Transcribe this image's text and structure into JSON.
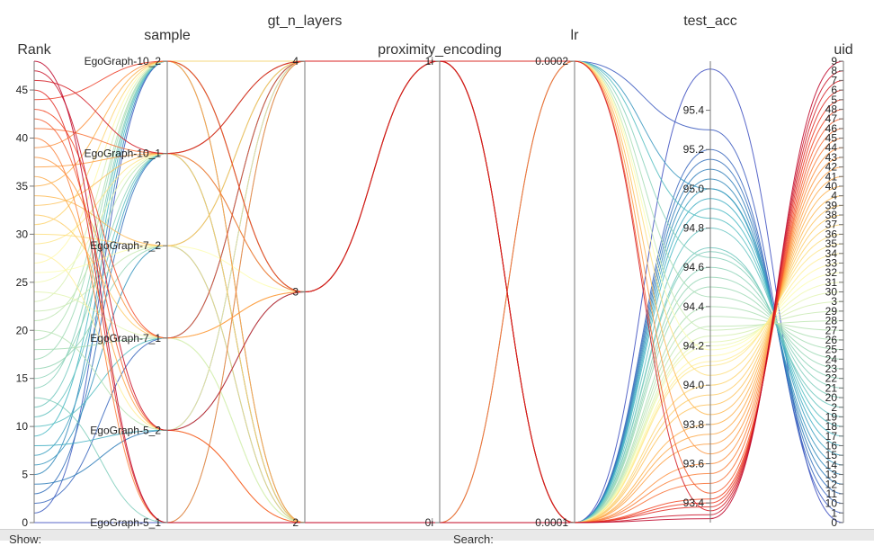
{
  "chart_data": {
    "type": "parallel_coordinates",
    "axes": [
      {
        "id": "rank",
        "title": "Rank",
        "kind": "numeric",
        "range": [
          0,
          48
        ],
        "ticks": [
          "0",
          "5",
          "10",
          "15",
          "20",
          "25",
          "30",
          "35",
          "40",
          "45"
        ]
      },
      {
        "id": "sample",
        "title": "sample",
        "kind": "categorical",
        "categories": [
          "EgoGraph-5_1",
          "EgoGraph-5_2",
          "EgoGraph-7_1",
          "EgoGraph-7_2",
          "EgoGraph-10_1",
          "EgoGraph-10_2"
        ]
      },
      {
        "id": "gt_n_layers",
        "title": "gt_n_layers",
        "kind": "categorical",
        "categories": [
          "2",
          "3",
          "4"
        ]
      },
      {
        "id": "proximity_encoding",
        "title": "proximity_encoding",
        "kind": "categorical",
        "categories": [
          "0i",
          "1i"
        ]
      },
      {
        "id": "lr",
        "title": "lr",
        "kind": "categorical",
        "categories": [
          "0.0001",
          "0.0002"
        ]
      },
      {
        "id": "test_acc",
        "title": "test_acc",
        "kind": "numeric",
        "range": [
          93.3,
          95.65
        ],
        "ticks": [
          "93.4",
          "93.6",
          "93.8",
          "94.0",
          "94.2",
          "94.4",
          "94.6",
          "94.8",
          "95.0",
          "95.2",
          "95.4"
        ]
      },
      {
        "id": "uid",
        "title": "uid",
        "kind": "categorical",
        "categories": [
          "0",
          "1",
          "10",
          "11",
          "12",
          "13",
          "14",
          "15",
          "16",
          "17",
          "18",
          "19",
          "2",
          "20",
          "21",
          "22",
          "23",
          "24",
          "25",
          "26",
          "27",
          "28",
          "29",
          "3",
          "30",
          "31",
          "32",
          "33",
          "34",
          "35",
          "36",
          "37",
          "38",
          "39",
          "4",
          "40",
          "41",
          "42",
          "43",
          "44",
          "45",
          "46",
          "47",
          "48",
          "5",
          "6",
          "7",
          "8",
          "9"
        ]
      }
    ],
    "colorscale": [
      "#3b4cc0",
      "#2c7fb8",
      "#41b6c4",
      "#7fcdbb",
      "#a1dab4",
      "#c7e9b4",
      "#ffffb2",
      "#fed976",
      "#feb24c",
      "#fd8d3c",
      "#f03b20",
      "#bd0026"
    ],
    "records": [
      {
        "rank": 0,
        "sample": "EgoGraph-5_1",
        "gt_n_layers": "2",
        "proximity_encoding": "0i",
        "lr": "0.0001",
        "test_acc": 95.61,
        "uid": "0"
      },
      {
        "rank": 1,
        "sample": "EgoGraph-10_2",
        "gt_n_layers": "3",
        "proximity_encoding": "1i",
        "lr": "0.0002",
        "test_acc": 95.3,
        "uid": "1"
      },
      {
        "rank": 2,
        "sample": "EgoGraph-7_1",
        "gt_n_layers": "4",
        "proximity_encoding": "1i",
        "lr": "0.0001",
        "test_acc": 95.2,
        "uid": "10"
      },
      {
        "rank": 3,
        "sample": "EgoGraph-10_1",
        "gt_n_layers": "2",
        "proximity_encoding": "0i",
        "lr": "0.0001",
        "test_acc": 95.15,
        "uid": "11"
      },
      {
        "rank": 4,
        "sample": "EgoGraph-5_2",
        "gt_n_layers": "4",
        "proximity_encoding": "1i",
        "lr": "0.0001",
        "test_acc": 95.1,
        "uid": "12"
      },
      {
        "rank": 5,
        "sample": "EgoGraph-10_2",
        "gt_n_layers": "3",
        "proximity_encoding": "1i",
        "lr": "0.0001",
        "test_acc": 95.05,
        "uid": "13"
      },
      {
        "rank": 6,
        "sample": "EgoGraph-7_2",
        "gt_n_layers": "2",
        "proximity_encoding": "0i",
        "lr": "0.0002",
        "test_acc": 95.0,
        "uid": "14"
      },
      {
        "rank": 7,
        "sample": "EgoGraph-10_1",
        "gt_n_layers": "4",
        "proximity_encoding": "1i",
        "lr": "0.0001",
        "test_acc": 95.0,
        "uid": "15"
      },
      {
        "rank": 8,
        "sample": "EgoGraph-5_2",
        "gt_n_layers": "3",
        "proximity_encoding": "1i",
        "lr": "0.0001",
        "test_acc": 94.95,
        "uid": "16"
      },
      {
        "rank": 9,
        "sample": "EgoGraph-10_2",
        "gt_n_layers": "2",
        "proximity_encoding": "0i",
        "lr": "0.0001",
        "test_acc": 94.9,
        "uid": "17"
      },
      {
        "rank": 10,
        "sample": "EgoGraph-7_1",
        "gt_n_layers": "4",
        "proximity_encoding": "1i",
        "lr": "0.0002",
        "test_acc": 94.85,
        "uid": "18"
      },
      {
        "rank": 11,
        "sample": "EgoGraph-10_1",
        "gt_n_layers": "3",
        "proximity_encoding": "1i",
        "lr": "0.0001",
        "test_acc": 94.8,
        "uid": "19"
      },
      {
        "rank": 12,
        "sample": "EgoGraph-10_2",
        "gt_n_layers": "2",
        "proximity_encoding": "0i",
        "lr": "0.0001",
        "test_acc": 94.7,
        "uid": "2"
      },
      {
        "rank": 13,
        "sample": "EgoGraph-5_1",
        "gt_n_layers": "4",
        "proximity_encoding": "1i",
        "lr": "0.0001",
        "test_acc": 94.68,
        "uid": "20"
      },
      {
        "rank": 14,
        "sample": "EgoGraph-10_2",
        "gt_n_layers": "3",
        "proximity_encoding": "1i",
        "lr": "0.0002",
        "test_acc": 94.65,
        "uid": "21"
      },
      {
        "rank": 15,
        "sample": "EgoGraph-10_1",
        "gt_n_layers": "2",
        "proximity_encoding": "0i",
        "lr": "0.0001",
        "test_acc": 94.6,
        "uid": "22"
      },
      {
        "rank": 16,
        "sample": "EgoGraph-7_2",
        "gt_n_layers": "4",
        "proximity_encoding": "1i",
        "lr": "0.0001",
        "test_acc": 94.55,
        "uid": "23"
      },
      {
        "rank": 17,
        "sample": "EgoGraph-10_2",
        "gt_n_layers": "3",
        "proximity_encoding": "1i",
        "lr": "0.0001",
        "test_acc": 94.5,
        "uid": "24"
      },
      {
        "rank": 18,
        "sample": "EgoGraph-7_1",
        "gt_n_layers": "2",
        "proximity_encoding": "0i",
        "lr": "0.0002",
        "test_acc": 94.45,
        "uid": "25"
      },
      {
        "rank": 19,
        "sample": "EgoGraph-10_2",
        "gt_n_layers": "4",
        "proximity_encoding": "1i",
        "lr": "0.0001",
        "test_acc": 94.4,
        "uid": "26"
      },
      {
        "rank": 20,
        "sample": "EgoGraph-5_2",
        "gt_n_layers": "3",
        "proximity_encoding": "1i",
        "lr": "0.0001",
        "test_acc": 94.35,
        "uid": "27"
      },
      {
        "rank": 21,
        "sample": "EgoGraph-10_1",
        "gt_n_layers": "2",
        "proximity_encoding": "0i",
        "lr": "0.0001",
        "test_acc": 94.3,
        "uid": "28"
      },
      {
        "rank": 22,
        "sample": "EgoGraph-7_2",
        "gt_n_layers": "4",
        "proximity_encoding": "1i",
        "lr": "0.0002",
        "test_acc": 94.28,
        "uid": "29"
      },
      {
        "rank": 23,
        "sample": "EgoGraph-10_2",
        "gt_n_layers": "3",
        "proximity_encoding": "1i",
        "lr": "0.0001",
        "test_acc": 94.25,
        "uid": "3"
      },
      {
        "rank": 24,
        "sample": "EgoGraph-7_1",
        "gt_n_layers": "2",
        "proximity_encoding": "0i",
        "lr": "0.0001",
        "test_acc": 94.22,
        "uid": "30"
      },
      {
        "rank": 25,
        "sample": "EgoGraph-10_1",
        "gt_n_layers": "4",
        "proximity_encoding": "1i",
        "lr": "0.0001",
        "test_acc": 94.2,
        "uid": "31"
      },
      {
        "rank": 26,
        "sample": "EgoGraph-7_2",
        "gt_n_layers": "3",
        "proximity_encoding": "1i",
        "lr": "0.0002",
        "test_acc": 94.18,
        "uid": "32"
      },
      {
        "rank": 27,
        "sample": "EgoGraph-10_2",
        "gt_n_layers": "2",
        "proximity_encoding": "0i",
        "lr": "0.0001",
        "test_acc": 94.15,
        "uid": "33"
      },
      {
        "rank": 28,
        "sample": "EgoGraph-5_2",
        "gt_n_layers": "4",
        "proximity_encoding": "1i",
        "lr": "0.0001",
        "test_acc": 94.12,
        "uid": "34"
      },
      {
        "rank": 29,
        "sample": "EgoGraph-10_1",
        "gt_n_layers": "3",
        "proximity_encoding": "1i",
        "lr": "0.0001",
        "test_acc": 94.1,
        "uid": "35"
      },
      {
        "rank": 30,
        "sample": "EgoGraph-7_2",
        "gt_n_layers": "2",
        "proximity_encoding": "0i",
        "lr": "0.0002",
        "test_acc": 94.05,
        "uid": "36"
      },
      {
        "rank": 31,
        "sample": "EgoGraph-10_2",
        "gt_n_layers": "4",
        "proximity_encoding": "1i",
        "lr": "0.0001",
        "test_acc": 94.0,
        "uid": "37"
      },
      {
        "rank": 32,
        "sample": "EgoGraph-7_1",
        "gt_n_layers": "3",
        "proximity_encoding": "1i",
        "lr": "0.0001",
        "test_acc": 93.95,
        "uid": "38"
      },
      {
        "rank": 33,
        "sample": "EgoGraph-10_1",
        "gt_n_layers": "2",
        "proximity_encoding": "0i",
        "lr": "0.0001",
        "test_acc": 93.9,
        "uid": "39"
      },
      {
        "rank": 34,
        "sample": "EgoGraph-7_2",
        "gt_n_layers": "4",
        "proximity_encoding": "1i",
        "lr": "0.0002",
        "test_acc": 93.85,
        "uid": "4"
      },
      {
        "rank": 35,
        "sample": "EgoGraph-10_2",
        "gt_n_layers": "3",
        "proximity_encoding": "1i",
        "lr": "0.0001",
        "test_acc": 93.8,
        "uid": "40"
      },
      {
        "rank": 36,
        "sample": "EgoGraph-5_2",
        "gt_n_layers": "2",
        "proximity_encoding": "0i",
        "lr": "0.0001",
        "test_acc": 93.75,
        "uid": "41"
      },
      {
        "rank": 37,
        "sample": "EgoGraph-10_1",
        "gt_n_layers": "4",
        "proximity_encoding": "1i",
        "lr": "0.0001",
        "test_acc": 93.7,
        "uid": "42"
      },
      {
        "rank": 38,
        "sample": "EgoGraph-7_1",
        "gt_n_layers": "3",
        "proximity_encoding": "1i",
        "lr": "0.0002",
        "test_acc": 93.65,
        "uid": "43"
      },
      {
        "rank": 39,
        "sample": "EgoGraph-10_2",
        "gt_n_layers": "2",
        "proximity_encoding": "0i",
        "lr": "0.0001",
        "test_acc": 93.6,
        "uid": "44"
      },
      {
        "rank": 40,
        "sample": "EgoGraph-5_1",
        "gt_n_layers": "4",
        "proximity_encoding": "1i",
        "lr": "0.0001",
        "test_acc": 93.55,
        "uid": "45"
      },
      {
        "rank": 41,
        "sample": "EgoGraph-10_1",
        "gt_n_layers": "3",
        "proximity_encoding": "1i",
        "lr": "0.0001",
        "test_acc": 93.5,
        "uid": "46"
      },
      {
        "rank": 42,
        "sample": "EgoGraph-5_2",
        "gt_n_layers": "2",
        "proximity_encoding": "0i",
        "lr": "0.0002",
        "test_acc": 93.45,
        "uid": "47"
      },
      {
        "rank": 43,
        "sample": "EgoGraph-7_1",
        "gt_n_layers": "4",
        "proximity_encoding": "1i",
        "lr": "0.0001",
        "test_acc": 93.42,
        "uid": "48"
      },
      {
        "rank": 44,
        "sample": "EgoGraph-10_2",
        "gt_n_layers": "3",
        "proximity_encoding": "1i",
        "lr": "0.0001",
        "test_acc": 93.4,
        "uid": "5"
      },
      {
        "rank": 45,
        "sample": "EgoGraph-5_1",
        "gt_n_layers": "2",
        "proximity_encoding": "0i",
        "lr": "0.0001",
        "test_acc": 93.38,
        "uid": "6"
      },
      {
        "rank": 46,
        "sample": "EgoGraph-10_1",
        "gt_n_layers": "4",
        "proximity_encoding": "1i",
        "lr": "0.0002",
        "test_acc": 93.36,
        "uid": "7"
      },
      {
        "rank": 47,
        "sample": "EgoGraph-5_2",
        "gt_n_layers": "3",
        "proximity_encoding": "1i",
        "lr": "0.0001",
        "test_acc": 93.34,
        "uid": "8"
      },
      {
        "rank": 48,
        "sample": "EgoGraph-5_1",
        "gt_n_layers": "2",
        "proximity_encoding": "0i",
        "lr": "0.0001",
        "test_acc": 93.32,
        "uid": "9"
      }
    ]
  },
  "footer": {
    "show_label": "Show:",
    "search_label": "Search:"
  }
}
